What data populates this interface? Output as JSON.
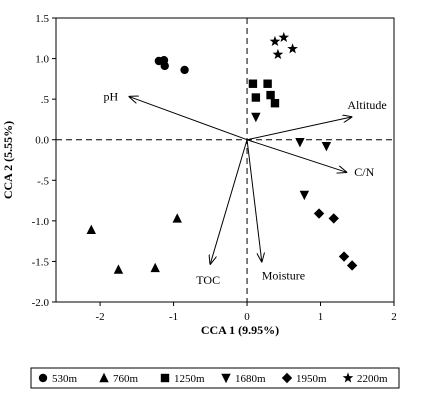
{
  "chart_data": {
    "type": "scatter",
    "xlabel": "CCA 1 (9.95%)",
    "ylabel": "CCA 2 (5.55%)",
    "xlim": [
      -2.6,
      2
    ],
    "ylim": [
      -2.0,
      1.5
    ],
    "x_ticks": [
      -2,
      -1,
      0,
      1,
      2
    ],
    "x_tick_labels": [
      "-2",
      "-1",
      "0",
      "1",
      "2"
    ],
    "y_ticks": [
      1.5,
      1.0,
      0.5,
      0.0,
      -0.5,
      -1.0,
      -1.5,
      -2.0
    ],
    "y_tick_labels": [
      "1.5",
      "1.0",
      ".5",
      "0.0",
      "-.5",
      "-1.0",
      "-1.5",
      "-2.0"
    ],
    "grid": false,
    "reference_lines": {
      "x": 0,
      "y": 0,
      "style": "dashed"
    },
    "series": [
      {
        "name": "530m",
        "marker": "circle",
        "points": [
          [
            -1.2,
            0.97
          ],
          [
            -1.13,
            0.98
          ],
          [
            -1.12,
            0.91
          ],
          [
            -0.85,
            0.86
          ]
        ]
      },
      {
        "name": "760m",
        "marker": "triangle-up",
        "points": [
          [
            -2.12,
            -1.11
          ],
          [
            -1.75,
            -1.6
          ],
          [
            -1.25,
            -1.58
          ],
          [
            -0.95,
            -0.97
          ]
        ]
      },
      {
        "name": "1250m",
        "marker": "square",
        "points": [
          [
            0.08,
            0.69
          ],
          [
            0.28,
            0.69
          ],
          [
            0.12,
            0.52
          ],
          [
            0.32,
            0.55
          ],
          [
            0.38,
            0.45
          ]
        ]
      },
      {
        "name": "1680m",
        "marker": "triangle-down",
        "points": [
          [
            0.12,
            0.28
          ],
          [
            0.72,
            -0.03
          ],
          [
            1.08,
            -0.08
          ],
          [
            0.78,
            -0.68
          ]
        ]
      },
      {
        "name": "1950m",
        "marker": "diamond",
        "points": [
          [
            0.98,
            -0.91
          ],
          [
            1.18,
            -0.97
          ],
          [
            1.32,
            -1.44
          ],
          [
            1.43,
            -1.55
          ]
        ]
      },
      {
        "name": "2200m",
        "marker": "star",
        "points": [
          [
            0.38,
            1.21
          ],
          [
            0.5,
            1.26
          ],
          [
            0.62,
            1.12
          ],
          [
            0.42,
            1.05
          ]
        ]
      }
    ],
    "arrows": [
      {
        "label": "pH",
        "x": -1.6,
        "y": 0.53
      },
      {
        "label": "Altitude",
        "x": 1.42,
        "y": 0.28
      },
      {
        "label": "C/N",
        "x": 1.35,
        "y": -0.4
      },
      {
        "label": "TOC",
        "x": -0.5,
        "y": -1.53
      },
      {
        "label": "Moisture",
        "x": 0.2,
        "y": -1.5
      }
    ],
    "legend": {
      "placement": "bottom-outside",
      "entries": [
        "530m",
        "760m",
        "1250m",
        "1680m",
        "1950m",
        "2200m"
      ]
    }
  }
}
